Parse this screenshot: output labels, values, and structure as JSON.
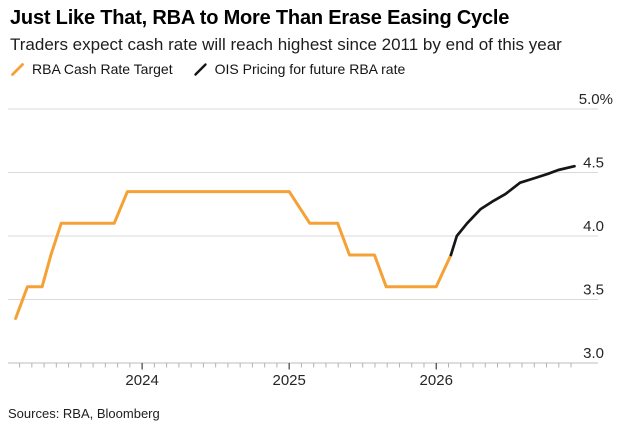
{
  "footer": {
    "sources": "Sources: RBA, Bloomberg"
  },
  "chart_data": {
    "type": "line",
    "title": "Just Like That, RBA to More Than Erase Easing Cycle",
    "subtitle": "Traders expect cash rate will reach highest since 2011 by end of this year",
    "legend_position": "top-left",
    "grid": "horizontal",
    "x_axis": {
      "min": 2023.088,
      "max": 2027.1,
      "year_ticks": [
        2024,
        2025,
        2026
      ],
      "year_tick_labels": [
        "2024",
        "2025",
        "2026"
      ],
      "minor_ticks": "monthly"
    },
    "y_axis": {
      "min": 3.0,
      "max": 5.0,
      "ticks": [
        3.0,
        3.5,
        4.0,
        4.5,
        5.0
      ],
      "tick_labels": [
        "3.0",
        "3.5",
        "4.0",
        "4.5",
        "5.0%"
      ],
      "unit": "%"
    },
    "series": [
      {
        "name": "RBA Cash Rate Target",
        "color": "#F5A135",
        "width": 3,
        "points": [
          [
            2023.14,
            3.35
          ],
          [
            2023.22,
            3.6
          ],
          [
            2023.32,
            3.6
          ],
          [
            2023.38,
            3.85
          ],
          [
            2023.45,
            4.1
          ],
          [
            2023.81,
            4.1
          ],
          [
            2023.9,
            4.35
          ],
          [
            2025.0,
            4.35
          ],
          [
            2025.14,
            4.1
          ],
          [
            2025.33,
            4.1
          ],
          [
            2025.41,
            3.85
          ],
          [
            2025.58,
            3.85
          ],
          [
            2025.66,
            3.6
          ],
          [
            2026.0,
            3.6
          ],
          [
            2026.1,
            3.85
          ]
        ]
      },
      {
        "name": "OIS Pricing for future RBA rate",
        "color": "#161616",
        "width": 2.7,
        "points": [
          [
            2026.1,
            3.85
          ],
          [
            2026.14,
            4.0
          ],
          [
            2026.21,
            4.1
          ],
          [
            2026.3,
            4.21
          ],
          [
            2026.38,
            4.27
          ],
          [
            2026.47,
            4.33
          ],
          [
            2026.57,
            4.42
          ],
          [
            2026.68,
            4.46
          ],
          [
            2026.76,
            4.49
          ],
          [
            2026.83,
            4.52
          ],
          [
            2026.94,
            4.55
          ]
        ]
      }
    ]
  }
}
